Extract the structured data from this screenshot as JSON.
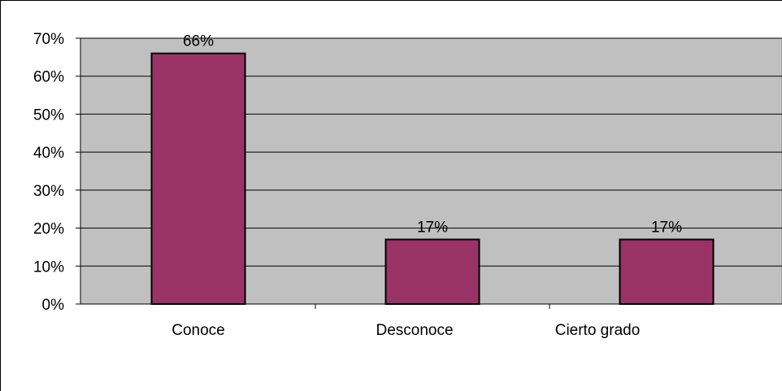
{
  "chart_data": {
    "type": "bar",
    "categories": [
      "Conoce",
      "Desconoce",
      "Cierto grado"
    ],
    "values": [
      66,
      17,
      17
    ],
    "data_labels": [
      "66%",
      "17%",
      "17%"
    ],
    "yticks": [
      "0%",
      "10%",
      "20%",
      "30%",
      "40%",
      "50%",
      "60%",
      "70%"
    ],
    "ylim": [
      0,
      70
    ],
    "grid": true,
    "legend": "none",
    "colors": {
      "bar": "#993366",
      "plot_background": "#c0c0c0",
      "gridline": "#000000"
    }
  }
}
